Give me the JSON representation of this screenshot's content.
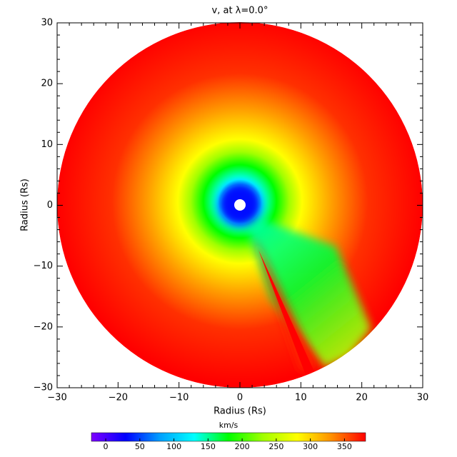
{
  "chart_data": {
    "type": "heatmap",
    "title": "v, at λ=0.0°",
    "xlabel": "Radius (Rs)",
    "ylabel": "Radius (Rs)",
    "xlim": [
      -30,
      30
    ],
    "ylim": [
      -30,
      30
    ],
    "xticks": [
      {
        "value": -30,
        "label": "−30"
      },
      {
        "value": -20,
        "label": "−20"
      },
      {
        "value": -10,
        "label": "−10"
      },
      0,
      10,
      20,
      30
    ],
    "yticks": [
      {
        "value": -30,
        "label": "−30"
      },
      {
        "value": -20,
        "label": "−20"
      },
      {
        "value": -10,
        "label": "−10"
      },
      0,
      10,
      20,
      30
    ],
    "minor_per_major": 5,
    "colorbar": {
      "label": "km/s",
      "clim": [
        -21,
        381
      ],
      "ticks": [
        0,
        50,
        100,
        150,
        200,
        250,
        300,
        350
      ],
      "colormap": [
        "#7f00ff",
        "#0000ff",
        "#00a0ff",
        "#00ffff",
        "#00ff00",
        "#a0ff00",
        "#ffff00",
        "#ff9000",
        "#ff0000"
      ]
    }
  }
}
